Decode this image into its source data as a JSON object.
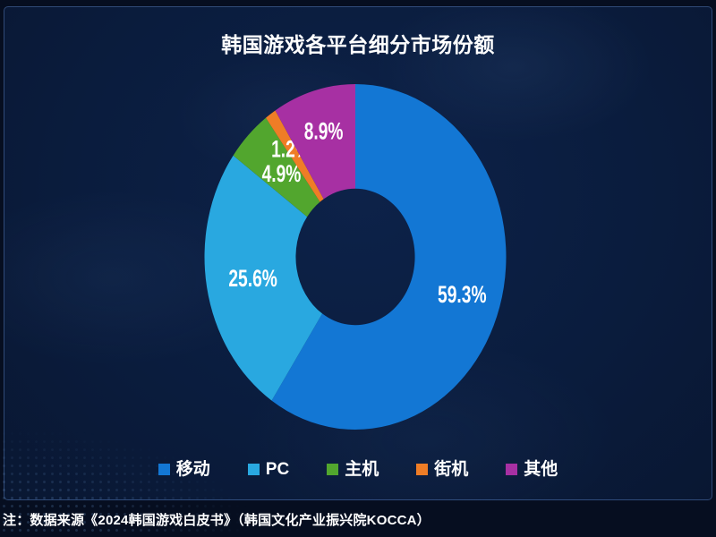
{
  "title": {
    "text": "韩国游戏各平台细分市场份额"
  },
  "footer": {
    "note": "注：数据来源《2024韩国游戏白皮书》（韩国文化产业振兴院KOCCA）"
  },
  "colors": {
    "background": "#0a1c3d",
    "frame_border": "#2b4a7c",
    "text": "#ffffff"
  },
  "chart_data": {
    "type": "pie",
    "subtype": "donut",
    "title": "韩国游戏各平台细分市场份额",
    "unit": "%",
    "categories": [
      "移动",
      "PC",
      "主机",
      "街机",
      "其他"
    ],
    "values": [
      59.3,
      25.6,
      4.9,
      1.2,
      8.9
    ],
    "labels": [
      "59.3%",
      "25.6%",
      "4.9%",
      "1.2%",
      "8.9%"
    ],
    "colors": [
      "#1377d4",
      "#29a8e0",
      "#52a62e",
      "#ef7d26",
      "#a730a3"
    ],
    "start_angle_deg": 0,
    "direction": "clockwise",
    "inner_radius_ratio": 0.395,
    "label_radius_fractions": [
      0.74,
      0.69,
      0.69,
      0.76,
      0.76
    ],
    "label_color": "#ffffff",
    "legend_position": "bottom",
    "grid": false
  }
}
